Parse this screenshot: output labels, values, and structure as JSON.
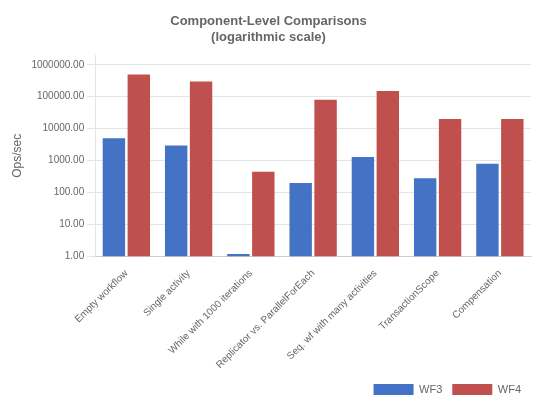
{
  "chart_data": {
    "type": "bar",
    "title": "Component-Level Comparisons\n(logarithmic scale)",
    "ylabel": "Ops/sec",
    "categories": [
      "Empty workflow",
      "Single activity",
      "While with 1000 iterations",
      "Replicator vs. ParallelForEach",
      "Seq. wf with many activities",
      "TransactionScope",
      "Compensation"
    ],
    "series": [
      {
        "name": "WF3",
        "color": "#4472C4",
        "values": [
          5000,
          3000,
          1.2,
          200,
          1300,
          280,
          800
        ]
      },
      {
        "name": "WF4",
        "color": "#C0504D",
        "values": [
          500000,
          300000,
          450,
          80000,
          150000,
          20000,
          20000
        ]
      }
    ],
    "ylim": [
      1,
      2000000
    ],
    "yticks": [
      {
        "value": 1,
        "label": "1.00"
      },
      {
        "value": 10,
        "label": "10.00"
      },
      {
        "value": 100,
        "label": "100.00"
      },
      {
        "value": 1000,
        "label": "1000.00"
      },
      {
        "value": 10000,
        "label": "10000.00"
      },
      {
        "value": 100000,
        "label": "100000.00"
      },
      {
        "value": 1000000,
        "label": "1000000.00"
      }
    ],
    "log": "y",
    "grid": true,
    "legend": "lower right"
  }
}
